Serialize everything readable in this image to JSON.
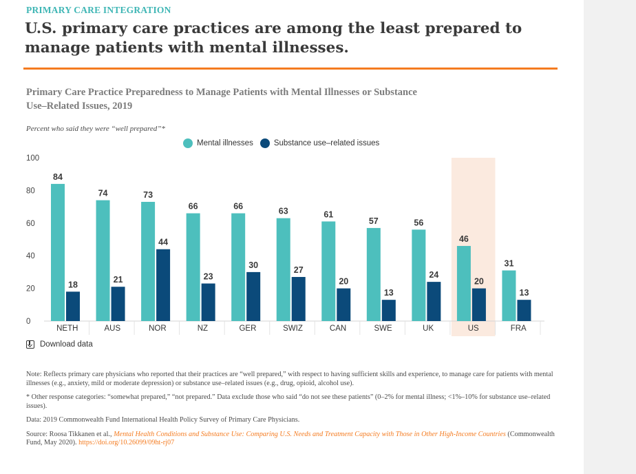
{
  "header": {
    "kicker": "PRIMARY CARE INTEGRATION",
    "headline": "U.S. primary care practices are among the least prepared to manage patients with mental illnesses."
  },
  "colors": {
    "accent_orange": "#f47b20",
    "kicker_teal": "#3fb6b5",
    "mental_illnesses": "#4dbfbd",
    "substance_use": "#0b4a7a",
    "us_highlight": "#fbeadf"
  },
  "chart_data": {
    "type": "bar",
    "title": "Primary Care Practice Preparedness to Manage Patients with Mental Illnesses or Substance Use–Related Issues, 2019",
    "subtitle": "Percent who said they were “well prepared”*",
    "categories": [
      "NETH",
      "AUS",
      "NOR",
      "NZ",
      "GER",
      "SWIZ",
      "CAN",
      "SWE",
      "UK",
      "US",
      "FRA"
    ],
    "series": [
      {
        "name": "Mental illnesses",
        "values": [
          84,
          74,
          73,
          66,
          66,
          63,
          61,
          57,
          56,
          46,
          31
        ]
      },
      {
        "name": "Substance use–related issues",
        "values": [
          18,
          21,
          44,
          23,
          30,
          27,
          20,
          13,
          24,
          20,
          13
        ]
      }
    ],
    "yticks": [
      "0",
      "20",
      "40",
      "60",
      "80",
      "100"
    ],
    "ylim": [
      0,
      100
    ],
    "highlight_category": "US",
    "legend_position": "top",
    "grid": false,
    "data_labels": true
  },
  "download_label": "Download data",
  "notes": {
    "note": "Note: Reflects primary care physicians who reported that their practices are “well prepared,” with respect to having sufficient skills and experience, to manage care for patients with mental illnesses (e.g., anxiety, mild or moderate depression) or substance use–related issues (e.g., drug, opioid, alcohol use).",
    "other": "* Other response categories: “somewhat prepared,” “not prepared.” Data exclude those who said “do not see these patients” (0–2% for mental illness; <1%–10% for substance use–related issues).",
    "data": "Data: 2019 Commonwealth Fund International Health Policy Survey of Primary Care Physicians.",
    "source_prefix": "Source: Roosa Tikkanen et al., ",
    "source_title": "Mental Health Conditions and Substance Use: Comparing U.S. Needs and Treatment Capacity with Those in Other High-Income Countries",
    "source_suffix": " (Commonwealth Fund, May 2020). ",
    "source_doi": "https://doi.org/10.26099/09ht-rj07"
  }
}
